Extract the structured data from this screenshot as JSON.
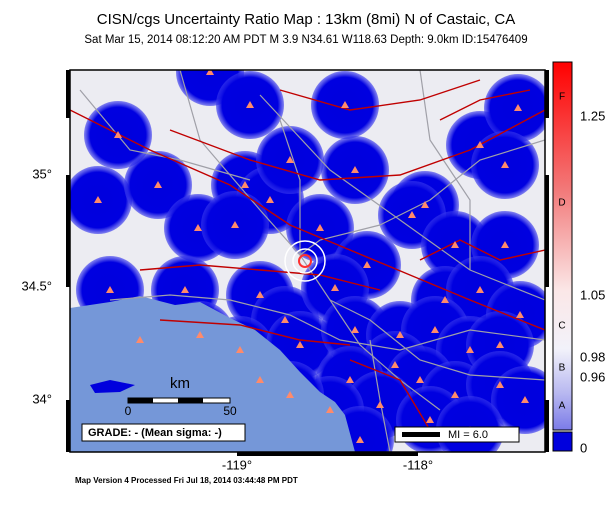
{
  "header": {
    "title": "CISN/cgs Uncertainty Ratio Map : 13km (8mi) N of Castaic, CA",
    "subtitle": "Sat Mar 15, 2014 08:12:20 AM PDT   M 3.9   N34.61 W118.63   Depth: 9.0km   ID:15476409"
  },
  "map": {
    "lat_labels": [
      "35°",
      "34.5°",
      "34°"
    ],
    "lon_labels": [
      "-119°",
      "-118°"
    ],
    "scale": {
      "unit": "km",
      "start": 0,
      "end": 50
    },
    "grade": "GRADE: - (Mean sigma: -)",
    "mi_legend": "MI = 6.0"
  },
  "colorbar": {
    "grades": [
      "F",
      "D",
      "C",
      "B",
      "A"
    ],
    "ticks": [
      1.25,
      1.05,
      0.98,
      0.96,
      0
    ]
  },
  "footer": "Map Version 4 Processed Fri Jul 18, 2014 03:44:48 PM PDT"
}
